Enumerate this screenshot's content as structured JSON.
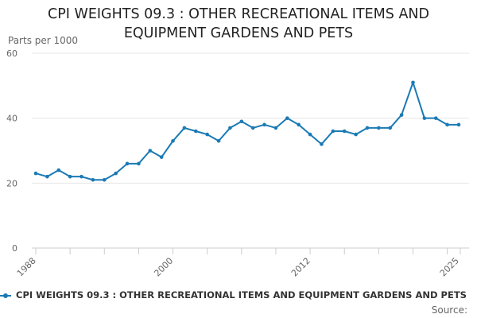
{
  "chart_data": {
    "type": "line",
    "title": "CPI WEIGHTS 09.3 : OTHER RECREATIONAL ITEMS AND EQUIPMENT GARDENS AND PETS",
    "ylabel": "Parts per 1000",
    "xlabel": "",
    "ylim": [
      0,
      60
    ],
    "yticks": [
      0,
      20,
      40,
      60
    ],
    "xlim": [
      1988,
      2025
    ],
    "xticks": [
      1988,
      2000,
      2012,
      2025
    ],
    "grid": true,
    "legend_position": "bottom",
    "series": [
      {
        "name": "CPI WEIGHTS 09.3 : OTHER RECREATIONAL ITEMS AND EQUIPMENT GARDENS AND PETS",
        "color": "#1a7ab5",
        "x": [
          1988,
          1989,
          1990,
          1991,
          1992,
          1993,
          1994,
          1995,
          1996,
          1997,
          1998,
          1999,
          2000,
          2001,
          2002,
          2003,
          2004,
          2005,
          2006,
          2007,
          2008,
          2009,
          2010,
          2011,
          2012,
          2013,
          2014,
          2015,
          2016,
          2017,
          2018,
          2019,
          2020,
          2021,
          2022,
          2023,
          2024,
          2025
        ],
        "values": [
          23,
          22,
          24,
          22,
          22,
          21,
          21,
          23,
          26,
          26,
          30,
          28,
          33,
          37,
          36,
          35,
          33,
          37,
          39,
          37,
          38,
          37,
          40,
          38,
          35,
          32,
          36,
          36,
          35,
          37,
          37,
          37,
          41,
          51,
          40,
          40,
          38,
          38
        ]
      }
    ]
  },
  "source_label": "Source:"
}
